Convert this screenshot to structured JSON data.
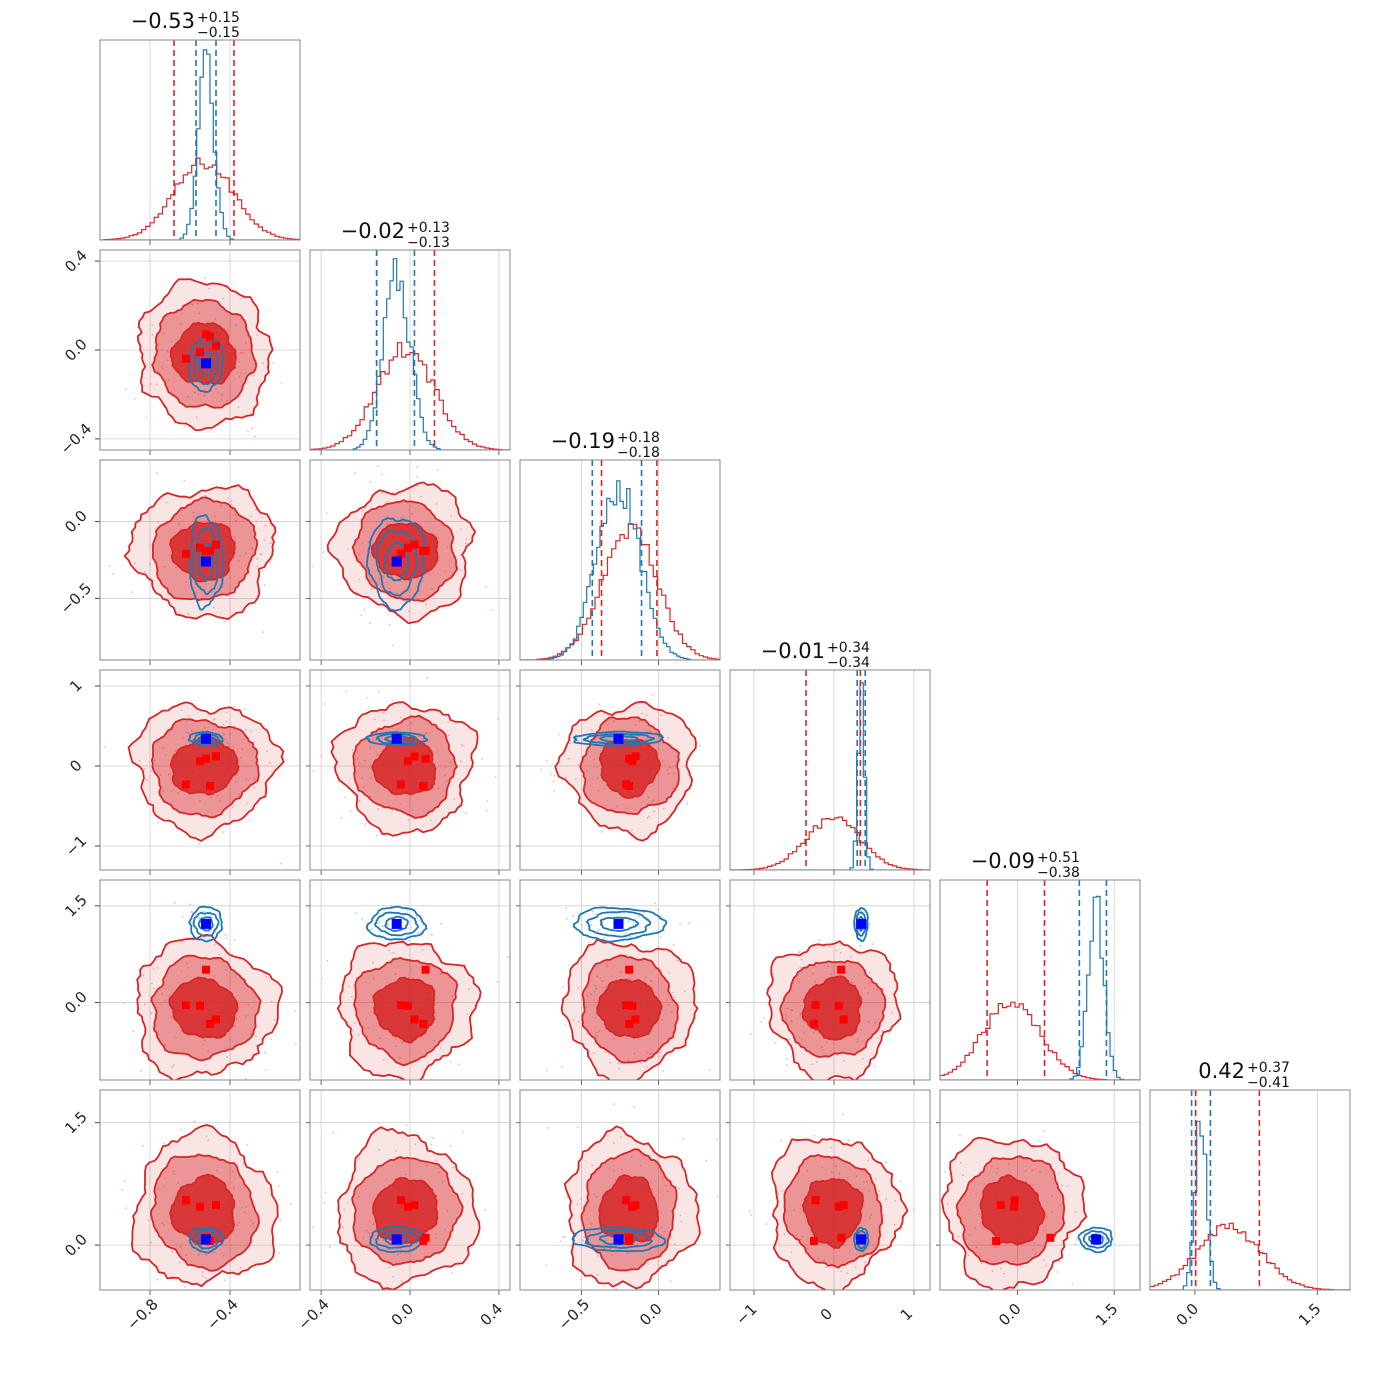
{
  "chart_data": {
    "type": "corner",
    "grid": true,
    "params": [
      {
        "title_value": "−0.53",
        "err_plus": "+0.15",
        "err_minus": "−0.15",
        "range": [
          -1.05,
          -0.05
        ],
        "ticks": [
          -0.8,
          -0.4
        ],
        "tick_labels": [
          "−0.8",
          "−0.4"
        ],
        "red": {
          "mu": -0.53,
          "sd": 0.15
        },
        "blue": {
          "mu": -0.52,
          "sd": 0.04
        },
        "red_q": [
          -0.68,
          -0.38
        ],
        "blue_q": [
          -0.57,
          -0.47
        ]
      },
      {
        "title_value": "−0.02",
        "err_plus": "+0.13",
        "err_minus": "−0.13",
        "range": [
          -0.45,
          0.45
        ],
        "ticks": [
          -0.4,
          0.0,
          0.4
        ],
        "tick_labels": [
          "−0.4",
          "0.0",
          "0.4"
        ],
        "red": {
          "mu": -0.02,
          "sd": 0.13
        },
        "blue": {
          "mu": -0.06,
          "sd": 0.06
        },
        "red_q": [
          -0.15,
          0.11
        ],
        "blue_q": [
          -0.15,
          0.02
        ]
      },
      {
        "title_value": "−0.19",
        "err_plus": "+0.18",
        "err_minus": "−0.18",
        "range": [
          -0.9,
          0.4
        ],
        "ticks": [
          -0.5,
          0.0
        ],
        "tick_labels": [
          "−0.5",
          "0.0"
        ],
        "red": {
          "mu": -0.19,
          "sd": 0.18
        },
        "blue": {
          "mu": -0.26,
          "sd": 0.14
        },
        "red_q": [
          -0.37,
          -0.01
        ],
        "blue_q": [
          -0.43,
          -0.11
        ]
      },
      {
        "title_value": "−0.01",
        "err_plus": "+0.34",
        "err_minus": "−0.34",
        "range": [
          -1.3,
          1.2
        ],
        "ticks": [
          -1,
          0,
          1
        ],
        "tick_labels": [
          "−1",
          "0",
          "1"
        ],
        "red": {
          "mu": -0.01,
          "sd": 0.34
        },
        "blue": {
          "mu": 0.34,
          "sd": 0.04
        },
        "red_q": [
          -0.35,
          0.33
        ],
        "blue_q": [
          0.29,
          0.39
        ]
      },
      {
        "title_value": "−0.09",
        "err_plus": "+0.51",
        "err_minus": "−0.38",
        "range": [
          -1.2,
          1.9
        ],
        "ticks": [
          0.0,
          1.5
        ],
        "tick_labels": [
          "0.0",
          "1.5"
        ],
        "red": {
          "mu": -0.09,
          "sd": 0.45
        },
        "blue": {
          "mu": 1.22,
          "sd": 0.12
        },
        "red_q": [
          -0.47,
          0.42
        ],
        "blue_q": [
          0.96,
          1.38
        ]
      },
      {
        "title_value": "0.42",
        "err_plus": "+0.37",
        "err_minus": "−0.41",
        "range": [
          -0.55,
          1.9
        ],
        "ticks": [
          0.0,
          1.5
        ],
        "tick_labels": [
          "0.0",
          "1.5"
        ],
        "red": {
          "mu": 0.42,
          "sd": 0.39
        },
        "blue": {
          "mu": 0.07,
          "sd": 0.07
        },
        "red_q": [
          0.01,
          0.79
        ],
        "blue_q": [
          -0.04,
          0.19
        ]
      }
    ],
    "truth_blue": [
      -0.52,
      -0.06,
      -0.26,
      0.34,
      1.22,
      0.07
    ],
    "truth_red_points": [
      [
        -0.62,
        -0.04,
        -0.21,
        -0.23,
        -0.04,
        0.55
      ],
      [
        -0.55,
        -0.01,
        -0.17,
        0.06,
        -0.05,
        0.47
      ],
      [
        -0.52,
        0.07,
        -0.19,
        0.09,
        0.51,
        0.09
      ],
      [
        -0.47,
        0.02,
        -0.15,
        0.12,
        -0.26,
        0.49
      ],
      [
        -0.5,
        0.06,
        -0.19,
        -0.25,
        -0.33,
        0.05
      ]
    ],
    "colors": {
      "primary": "#d62728",
      "secondary": "#1f77b4",
      "truth": "#0000ff"
    }
  }
}
